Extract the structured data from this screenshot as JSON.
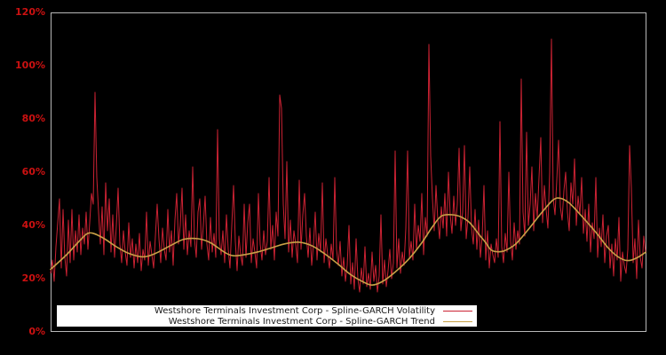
{
  "y_axis": {
    "tick_labels": [
      "0%",
      "20%",
      "40%",
      "60%",
      "80%",
      "100%",
      "120%"
    ],
    "tick_values": [
      0,
      20,
      40,
      60,
      80,
      100,
      120
    ],
    "label_color": "#cc1111"
  },
  "legend": {
    "entries": [
      {
        "label": "Westshore Terminals Investment Corp - Spline-GARCH Volatility",
        "series": "volatility"
      },
      {
        "label": "Westshore Terminals Investment Corp - Spline-GARCH Trend",
        "series": "trend"
      }
    ]
  },
  "colors": {
    "background": "#000000",
    "plot_border": "#b8b8b8",
    "axis_label": "#cc1111",
    "volatility": "#cc2233",
    "trend": "#c8a046",
    "legend_background": "#ffffff",
    "legend_text": "#1a1a1a"
  },
  "chart_data": {
    "type": "line",
    "ylim": [
      0,
      120
    ],
    "y_unit": "percent",
    "grid": false,
    "legend_position": "bottom-center",
    "background": "#000000",
    "series": [
      {
        "name": "Westshore Terminals Investment Corp - Spline-GARCH Volatility",
        "style": "spiky",
        "color": "#cc2233",
        "values": [
          22,
          27,
          19,
          32,
          41,
          50,
          24,
          46,
          28,
          21,
          42,
          26,
          46,
          27,
          38,
          30,
          44,
          29,
          39,
          33,
          45,
          31,
          41,
          52,
          48,
          90,
          58,
          45,
          33,
          47,
          29,
          56,
          38,
          50,
          30,
          44,
          28,
          40,
          54,
          33,
          26,
          38,
          30,
          25,
          41,
          28,
          35,
          24,
          33,
          26,
          37,
          23,
          31,
          27,
          45,
          25,
          34,
          29,
          24,
          36,
          48,
          35,
          26,
          39,
          31,
          27,
          46,
          30,
          38,
          25,
          42,
          52,
          33,
          40,
          54,
          31,
          44,
          29,
          38,
          32,
          62,
          35,
          28,
          45,
          50,
          31,
          40,
          51,
          33,
          27,
          43,
          30,
          37,
          28,
          76,
          35,
          29,
          38,
          26,
          44,
          31,
          24,
          40,
          55,
          34,
          23,
          36,
          29,
          25,
          48,
          28,
          41,
          48,
          26,
          35,
          30,
          24,
          52,
          33,
          27,
          38,
          29,
          34,
          58,
          31,
          40,
          27,
          45,
          36,
          89,
          84,
          48,
          35,
          64,
          30,
          42,
          28,
          38,
          33,
          26,
          57,
          31,
          44,
          52,
          36,
          28,
          39,
          25,
          33,
          45,
          27,
          37,
          30,
          56,
          26,
          35,
          29,
          24,
          33,
          27,
          58,
          31,
          25,
          34,
          21,
          28,
          19,
          25,
          40,
          18,
          26,
          16,
          35,
          20,
          15,
          24,
          18,
          32,
          17,
          22,
          16,
          30,
          19,
          25,
          15,
          21,
          44,
          18,
          27,
          17,
          23,
          31,
          20,
          26,
          68,
          24,
          35,
          22,
          30,
          25,
          39,
          68,
          28,
          34,
          27,
          48,
          31,
          40,
          34,
          52,
          29,
          43,
          36,
          108,
          66,
          50,
          38,
          55,
          42,
          35,
          47,
          39,
          52,
          36,
          60,
          44,
          37,
          51,
          40,
          48,
          69,
          38,
          45,
          70,
          35,
          43,
          62,
          39,
          33,
          46,
          31,
          42,
          28,
          36,
          55,
          27,
          38,
          24,
          33,
          29,
          26,
          35,
          28,
          79,
          32,
          26,
          37,
          30,
          60,
          34,
          27,
          41,
          31,
          38,
          33,
          95,
          45,
          36,
          75,
          40,
          48,
          62,
          38,
          52,
          43,
          58,
          73,
          41,
          55,
          46,
          39,
          60,
          110,
          50,
          44,
          57,
          72,
          47,
          42,
          53,
          60,
          45,
          38,
          56,
          48,
          65,
          40,
          51,
          44,
          58,
          37,
          46,
          34,
          48,
          30,
          41,
          35,
          58,
          28,
          39,
          32,
          44,
          26,
          36,
          40,
          24,
          33,
          21,
          35,
          27,
          43,
          19,
          30,
          25,
          22,
          31,
          70,
          54,
          26,
          35,
          20,
          42,
          28,
          24,
          36,
          30
        ]
      },
      {
        "name": "Westshore Terminals Investment Corp - Spline-GARCH Trend",
        "style": "smooth",
        "color": "#c8a046",
        "keypoints": [
          [
            0,
            23.5
          ],
          [
            9,
            29
          ],
          [
            17,
            34.7
          ],
          [
            22,
            37.2
          ],
          [
            29,
            35.5
          ],
          [
            37,
            32
          ],
          [
            44,
            29.5
          ],
          [
            52,
            28.2
          ],
          [
            59,
            29.5
          ],
          [
            68,
            32.6
          ],
          [
            75,
            34.8
          ],
          [
            83,
            35
          ],
          [
            90,
            33.5
          ],
          [
            98,
            29.9
          ],
          [
            103,
            28.6
          ],
          [
            110,
            29.1
          ],
          [
            117,
            30.1
          ],
          [
            124,
            31.5
          ],
          [
            132,
            33.1
          ],
          [
            140,
            33.7
          ],
          [
            147,
            32.4
          ],
          [
            154,
            29.5
          ],
          [
            162,
            25.4
          ],
          [
            169,
            21.5
          ],
          [
            176,
            18.8
          ],
          [
            181,
            17.6
          ],
          [
            187,
            19
          ],
          [
            194,
            22.5
          ],
          [
            202,
            27.6
          ],
          [
            209,
            33.5
          ],
          [
            215,
            39.5
          ],
          [
            220,
            43.5
          ],
          [
            226,
            44
          ],
          [
            231,
            43.2
          ],
          [
            236,
            41
          ],
          [
            241,
            36.8
          ],
          [
            245,
            33.5
          ],
          [
            248,
            30.8
          ],
          [
            252,
            30.1
          ],
          [
            256,
            30.6
          ],
          [
            262,
            33.1
          ],
          [
            269,
            38.5
          ],
          [
            277,
            45.2
          ],
          [
            283,
            49.6
          ],
          [
            287,
            50.2
          ],
          [
            292,
            48.4
          ],
          [
            299,
            43.5
          ],
          [
            307,
            37.4
          ],
          [
            314,
            31.5
          ],
          [
            320,
            28
          ],
          [
            325,
            26.8
          ],
          [
            330,
            27.8
          ],
          [
            335,
            29.9
          ]
        ]
      }
    ]
  }
}
